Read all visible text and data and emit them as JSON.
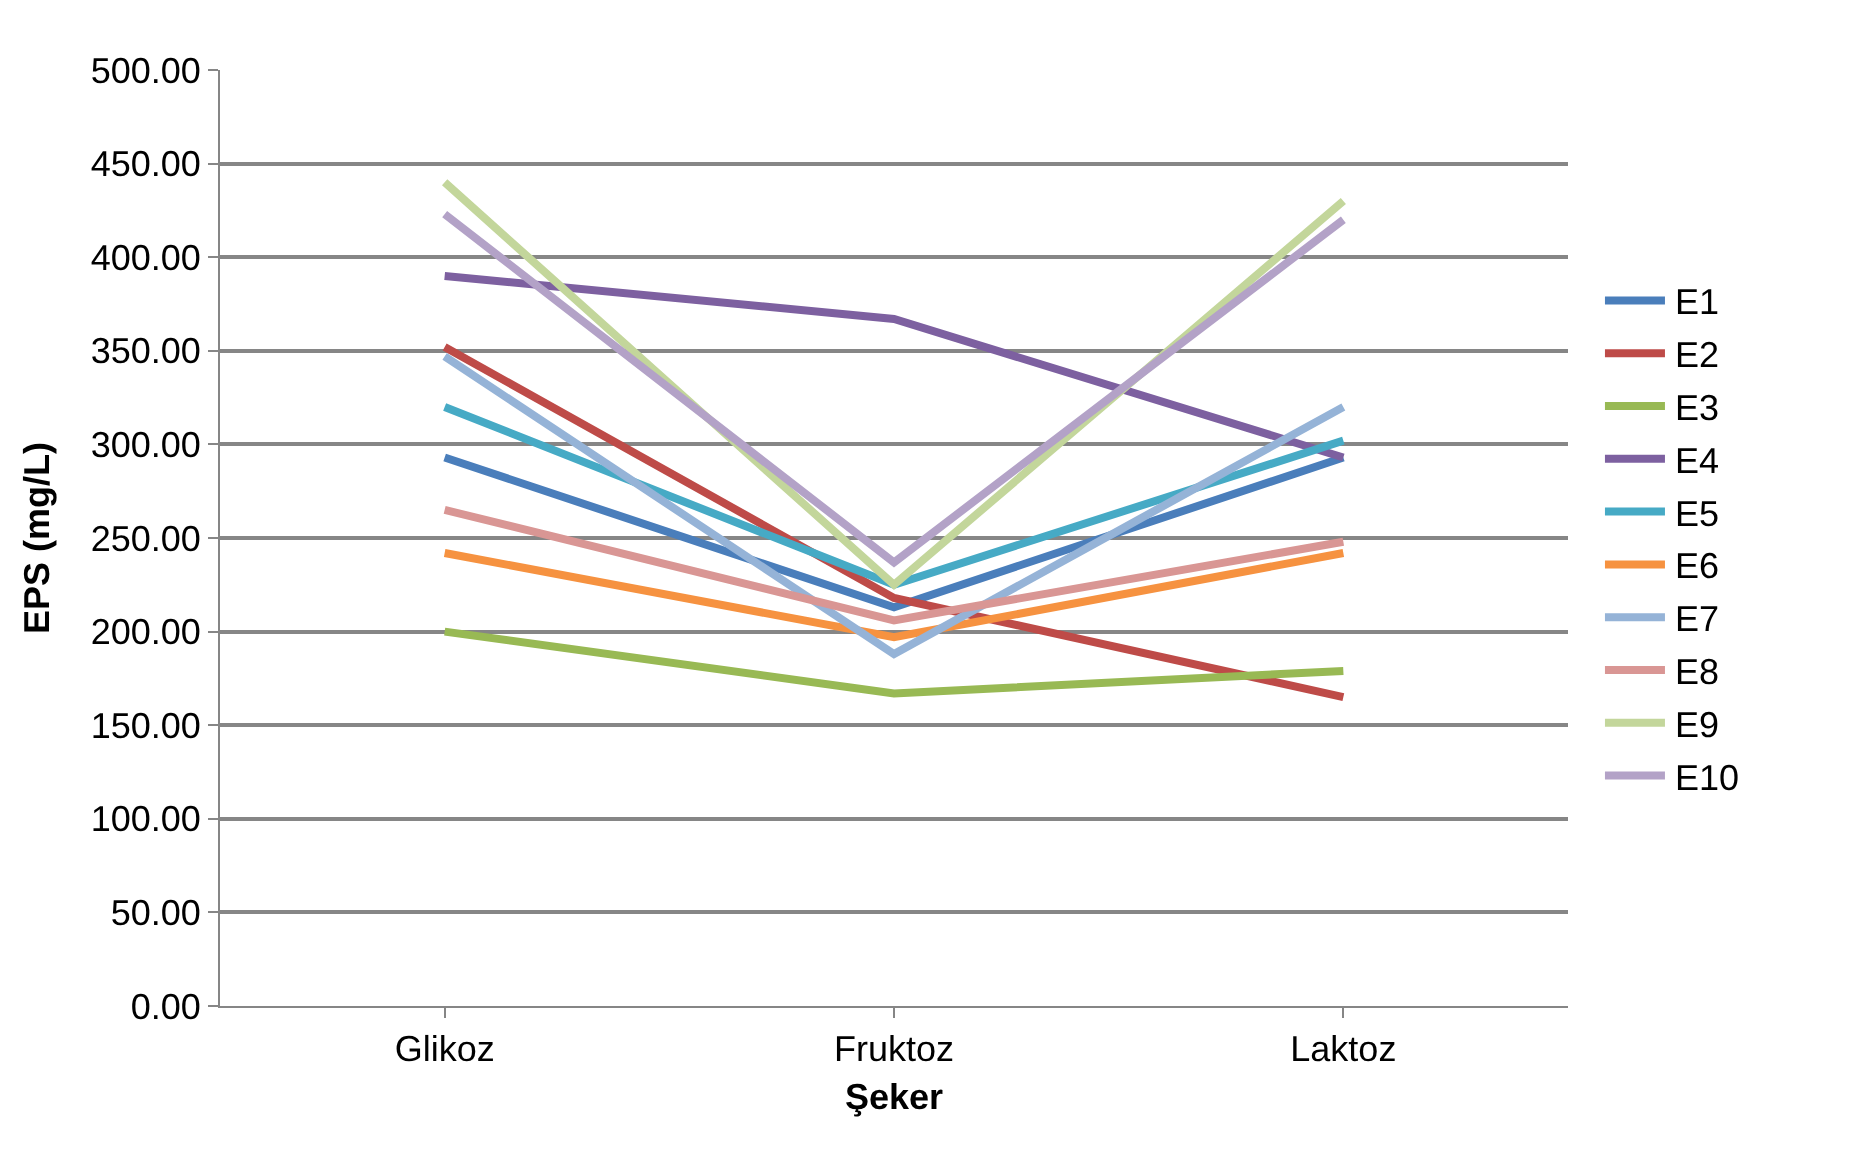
{
  "chart_data": {
    "type": "line",
    "xlabel": "Şeker",
    "ylabel": "EPS (mg/L)",
    "categories": [
      "Glikoz",
      "Fruktoz",
      "Laktoz"
    ],
    "ylim": [
      0,
      500
    ],
    "yticks": [
      {
        "value": 0,
        "label": "0.00"
      },
      {
        "value": 50,
        "label": "50.00"
      },
      {
        "value": 100,
        "label": "100.00"
      },
      {
        "value": 150,
        "label": "150.00"
      },
      {
        "value": 200,
        "label": "200.00"
      },
      {
        "value": 250,
        "label": "250.00"
      },
      {
        "value": 300,
        "label": "300.00"
      },
      {
        "value": 350,
        "label": "350.00"
      },
      {
        "value": 400,
        "label": "400.00"
      },
      {
        "value": 450,
        "label": "450.00"
      },
      {
        "value": 500,
        "label": "500.00"
      }
    ],
    "grid": "y",
    "legend": "right",
    "marker": "none",
    "line_style": "solid",
    "series": [
      {
        "name": "E1",
        "color": "#4a7ebb",
        "values": [
          293,
          213,
          293
        ]
      },
      {
        "name": "E2",
        "color": "#be4b48",
        "values": [
          352,
          218,
          165
        ]
      },
      {
        "name": "E3",
        "color": "#98b954",
        "values": [
          200,
          167,
          179
        ]
      },
      {
        "name": "E4",
        "color": "#7d60a0",
        "values": [
          390,
          367,
          293
        ]
      },
      {
        "name": "E5",
        "color": "#46aac5",
        "values": [
          320,
          225,
          302
        ]
      },
      {
        "name": "E6",
        "color": "#f69240",
        "values": [
          242,
          197,
          242
        ]
      },
      {
        "name": "E7",
        "color": "#95b3d7",
        "values": [
          347,
          188,
          320
        ]
      },
      {
        "name": "E8",
        "color": "#d99694",
        "values": [
          265,
          206,
          248
        ]
      },
      {
        "name": "E9",
        "color": "#c3d69b",
        "values": [
          440,
          225,
          430
        ]
      },
      {
        "name": "E10",
        "color": "#b3a2c7",
        "values": [
          423,
          237,
          420
        ]
      }
    ]
  }
}
